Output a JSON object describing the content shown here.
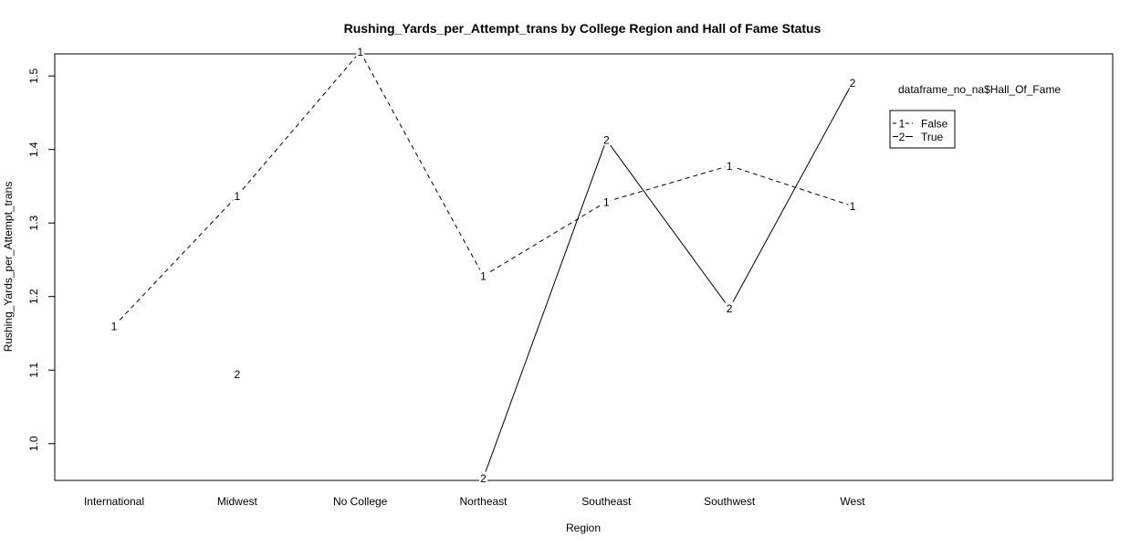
{
  "chart_data": {
    "type": "line",
    "title": "Rushing_Yards_per_Attempt_trans by College Region and Hall of Fame Status",
    "xlabel": "Region",
    "ylabel": "Rushing_Yards_per_Attempt_trans",
    "categories": [
      "International",
      "Midwest",
      "No College",
      "Northeast",
      "Southeast",
      "Southwest",
      "West"
    ],
    "ylim": [
      0.95,
      1.53
    ],
    "yticks": [
      1.0,
      1.1,
      1.2,
      1.3,
      1.4,
      1.5
    ],
    "ytick_labels": [
      "1.0",
      "1.1",
      "1.2",
      "1.3",
      "1.4",
      "1.5"
    ],
    "series": [
      {
        "name": "False",
        "marker": "1",
        "line_style": "dashed",
        "color": "#000000",
        "values": [
          1.16,
          1.337,
          1.533,
          1.228,
          1.329,
          1.378,
          1.323
        ]
      },
      {
        "name": "True",
        "marker": "2",
        "line_style": "solid",
        "color": "#000000",
        "values": [
          null,
          1.095,
          null,
          0.953,
          1.413,
          1.184,
          1.491
        ]
      }
    ],
    "legend": {
      "title": "dataframe_no_na$Hall_Of_Fame",
      "position": "right",
      "entries": [
        {
          "marker": "1",
          "label": "False",
          "line_style": "dashed"
        },
        {
          "marker": "2",
          "label": "True",
          "line_style": "solid"
        }
      ]
    },
    "grid": false
  }
}
